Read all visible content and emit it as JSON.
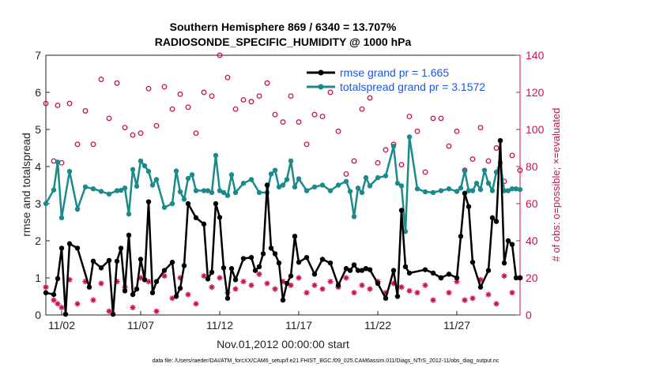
{
  "colors": {
    "rmse": "#000000",
    "spread": "#1a8a8a",
    "obs": "#cc1155",
    "legend_text": "#1a56e0",
    "axis": "#222222"
  },
  "chart_data": {
    "type": "line",
    "title": "Southern Hemisphere 869 / 6340 = 13.707%",
    "subtitle": "RADIOSONDE_SPECIFIC_HUMIDITY @ 1000 hPa",
    "xlabel": "Nov.01,2012 00:00:00 start",
    "ylabel": "rmse and totalspread",
    "ylabel_right": "# of obs: o=possible; ×=evaluated",
    "footnote": "data file: /Users/raeder/DAI/ATM_forcXX/CAM6_setup/f.e21.FHIST_BGC.f09_025.CAM6assim.011/Diags_NTrS_2012-11/obs_diag_output.nc",
    "xlim": [
      1,
      31
    ],
    "ylim": [
      0,
      7
    ],
    "ylim_right": [
      0,
      140
    ],
    "x_ticks": [
      2,
      7,
      12,
      17,
      22,
      27
    ],
    "x_tick_labels": [
      "11/02",
      "11/07",
      "11/12",
      "11/17",
      "11/22",
      "11/27"
    ],
    "y_ticks": [
      0,
      1,
      2,
      3,
      4,
      5,
      6,
      7
    ],
    "y_ticks_right": [
      0,
      20,
      40,
      60,
      80,
      100,
      120,
      140
    ],
    "grid": false,
    "legend_position": "top-right",
    "series": [
      {
        "name": "rmse grand pr = 1.665",
        "axis": "left",
        "x": [
          1.0,
          1.5,
          1.75,
          2.0,
          2.25,
          2.5,
          3.0,
          3.75,
          4.0,
          4.5,
          5.0,
          5.25,
          5.5,
          5.75,
          6.0,
          6.25,
          6.5,
          6.75,
          7.0,
          7.25,
          7.5,
          7.75,
          8.0,
          8.5,
          9.0,
          9.25,
          9.5,
          9.75,
          10.0,
          10.5,
          11.0,
          11.25,
          11.5,
          11.75,
          12.0,
          12.25,
          12.5,
          12.75,
          13.0,
          13.5,
          14.0,
          14.25,
          14.5,
          14.75,
          15.0,
          15.25,
          15.5,
          15.75,
          16.0,
          16.25,
          16.5,
          16.75,
          17.0,
          17.5,
          18.0,
          18.5,
          19.0,
          19.5,
          20.0,
          20.25,
          20.5,
          20.75,
          21.0,
          21.25,
          21.5,
          22.0,
          22.5,
          23.0,
          23.25,
          23.5,
          23.75,
          24.0,
          25.0,
          25.5,
          26.0,
          26.5,
          27.0,
          27.25,
          27.5,
          27.75,
          28.0,
          28.5,
          29.0,
          29.25,
          29.5,
          29.75,
          30.0,
          30.25,
          30.5,
          30.75,
          31.0
        ],
        "values": [
          0.6,
          0.55,
          0.98,
          1.8,
          0.02,
          1.92,
          1.8,
          0.75,
          1.45,
          1.27,
          1.47,
          0.02,
          1.45,
          1.8,
          0.65,
          2.15,
          0.55,
          0.7,
          1.5,
          0.95,
          3.05,
          0.6,
          0.9,
          1.2,
          1.42,
          0.5,
          0.72,
          1.33,
          3.0,
          2.62,
          2.45,
          0.97,
          1.15,
          3.0,
          2.63,
          1.27,
          0.45,
          1.25,
          0.95,
          1.52,
          1.55,
          1.2,
          1.3,
          1.65,
          3.5,
          1.8,
          1.65,
          1.4,
          0.4,
          0.85,
          1.05,
          2.12,
          1.42,
          1.55,
          1.1,
          1.5,
          1.4,
          0.8,
          1.25,
          1.2,
          1.35,
          1.2,
          1.2,
          1.25,
          1.22,
          0.85,
          0.45,
          1.2,
          0.5,
          2.82,
          1.3,
          1.13,
          1.22,
          1.13,
          1.0,
          1.1,
          1.0,
          2.12,
          3.28,
          2.92,
          1.42,
          0.75,
          1.2,
          2.62,
          2.52,
          4.7,
          1.4,
          2.0,
          1.9,
          1.0,
          1.0
        ]
      },
      {
        "name": "totalspread grand pr = 3.1572",
        "axis": "left",
        "x": [
          1.0,
          1.5,
          1.75,
          2.0,
          2.5,
          3.0,
          3.5,
          4.0,
          4.5,
          5.0,
          5.5,
          5.75,
          6.0,
          6.25,
          6.5,
          6.75,
          7.0,
          7.25,
          7.5,
          7.75,
          8.0,
          8.5,
          9.0,
          9.25,
          9.5,
          9.75,
          10.0,
          10.25,
          10.5,
          11.0,
          11.25,
          11.5,
          11.75,
          12.0,
          12.25,
          12.5,
          12.75,
          13.0,
          13.5,
          14.0,
          14.5,
          15.0,
          15.25,
          15.5,
          15.75,
          16.0,
          16.25,
          16.5,
          16.75,
          17.0,
          17.5,
          18.0,
          18.5,
          19.0,
          19.5,
          20.0,
          20.25,
          20.5,
          20.75,
          21.0,
          21.25,
          21.5,
          22.0,
          22.5,
          23.0,
          23.25,
          23.5,
          23.75,
          24.0,
          24.5,
          25.0,
          25.5,
          26.0,
          26.5,
          27.0,
          27.25,
          27.5,
          27.75,
          28.0,
          28.25,
          28.5,
          28.75,
          29.0,
          29.25,
          29.5,
          29.75,
          30.0,
          30.25,
          30.5,
          30.75,
          31.0
        ],
        "values": [
          3.0,
          3.37,
          4.12,
          2.62,
          3.87,
          2.85,
          3.45,
          3.4,
          3.33,
          3.26,
          3.35,
          3.36,
          3.42,
          2.72,
          3.92,
          3.47,
          4.15,
          4.02,
          3.87,
          3.5,
          3.65,
          2.9,
          3.0,
          3.88,
          3.32,
          3.12,
          3.68,
          3.78,
          3.35,
          3.35,
          3.35,
          3.3,
          4.3,
          3.35,
          3.3,
          3.22,
          3.78,
          3.3,
          3.55,
          3.65,
          3.3,
          3.3,
          3.8,
          3.9,
          3.45,
          3.5,
          3.65,
          4.15,
          3.45,
          3.67,
          3.35,
          3.45,
          3.5,
          3.35,
          3.5,
          3.6,
          3.33,
          2.65,
          3.42,
          3.3,
          3.7,
          3.48,
          3.7,
          3.75,
          4.55,
          3.55,
          3.48,
          2.25,
          4.8,
          3.4,
          3.32,
          3.3,
          3.35,
          3.4,
          3.33,
          3.42,
          3.88,
          3.35,
          3.35,
          3.55,
          3.38,
          3.9,
          3.55,
          3.35,
          3.85,
          4.1,
          3.35,
          3.35,
          3.4,
          3.4,
          3.38
        ]
      },
      {
        "name": "possible",
        "axis": "right",
        "x": [
          1.0,
          1.5,
          1.75,
          2.0,
          2.5,
          3.0,
          3.5,
          4.0,
          4.5,
          5.0,
          5.5,
          6.0,
          6.5,
          7.0,
          7.5,
          8.0,
          8.5,
          9.0,
          9.5,
          10.0,
          10.5,
          11.0,
          11.5,
          12.0,
          12.5,
          13.0,
          13.5,
          14.0,
          14.5,
          15.0,
          15.5,
          16.0,
          16.5,
          17.0,
          17.5,
          18.0,
          18.5,
          19.0,
          19.5,
          20.0,
          20.5,
          21.0,
          21.5,
          22.0,
          22.5,
          23.0,
          23.5,
          24.0,
          24.5,
          25.0,
          25.5,
          26.0,
          26.5,
          27.0,
          27.5,
          28.0,
          28.5,
          29.0,
          29.5,
          30.0,
          30.5,
          31.0
        ],
        "values": [
          114,
          83,
          113,
          82,
          114,
          92,
          110,
          92,
          127,
          106,
          125,
          101,
          97,
          98,
          122,
          102,
          123,
          111,
          119,
          112,
          98,
          120,
          118,
          140,
          128,
          111,
          116,
          115,
          118,
          125,
          108,
          104,
          118,
          104,
          92,
          108,
          107,
          120,
          99,
          76,
          83,
          111,
          117,
          82,
          89,
          92,
          81,
          107,
          99,
          77,
          106,
          106,
          91,
          99,
          78,
          84,
          101,
          83,
          90,
          72,
          86,
          78
        ]
      },
      {
        "name": "evaluated",
        "axis": "right",
        "x": [
          1.0,
          1.5,
          1.75,
          2.0,
          2.5,
          3.0,
          3.5,
          4.0,
          4.5,
          5.0,
          5.5,
          6.0,
          6.5,
          7.0,
          7.5,
          8.0,
          8.5,
          9.0,
          9.5,
          10.0,
          10.5,
          11.0,
          11.5,
          12.0,
          12.5,
          13.0,
          13.5,
          14.0,
          14.5,
          15.0,
          15.5,
          16.0,
          16.5,
          17.0,
          17.5,
          18.0,
          18.5,
          19.0,
          19.5,
          20.0,
          20.5,
          21.0,
          21.5,
          22.0,
          22.5,
          23.0,
          23.5,
          24.0,
          24.5,
          25.0,
          25.5,
          26.0,
          26.5,
          27.0,
          27.5,
          28.0,
          28.5,
          29.0,
          29.5,
          30.0,
          30.5,
          31.0
        ],
        "values": [
          15,
          8,
          6,
          4,
          19,
          6,
          18,
          8,
          17,
          2,
          18,
          15,
          4,
          20,
          18,
          2,
          21,
          9,
          20,
          11,
          6,
          21,
          15,
          20,
          12,
          14,
          18,
          16,
          22,
          17,
          14,
          18,
          16,
          20,
          12,
          16,
          14,
          18,
          15,
          20,
          12,
          16,
          14,
          18,
          12,
          17,
          15,
          13,
          12,
          16,
          8,
          20,
          12,
          18,
          8,
          9,
          19,
          11,
          6,
          21,
          12,
          20
        ]
      }
    ]
  }
}
